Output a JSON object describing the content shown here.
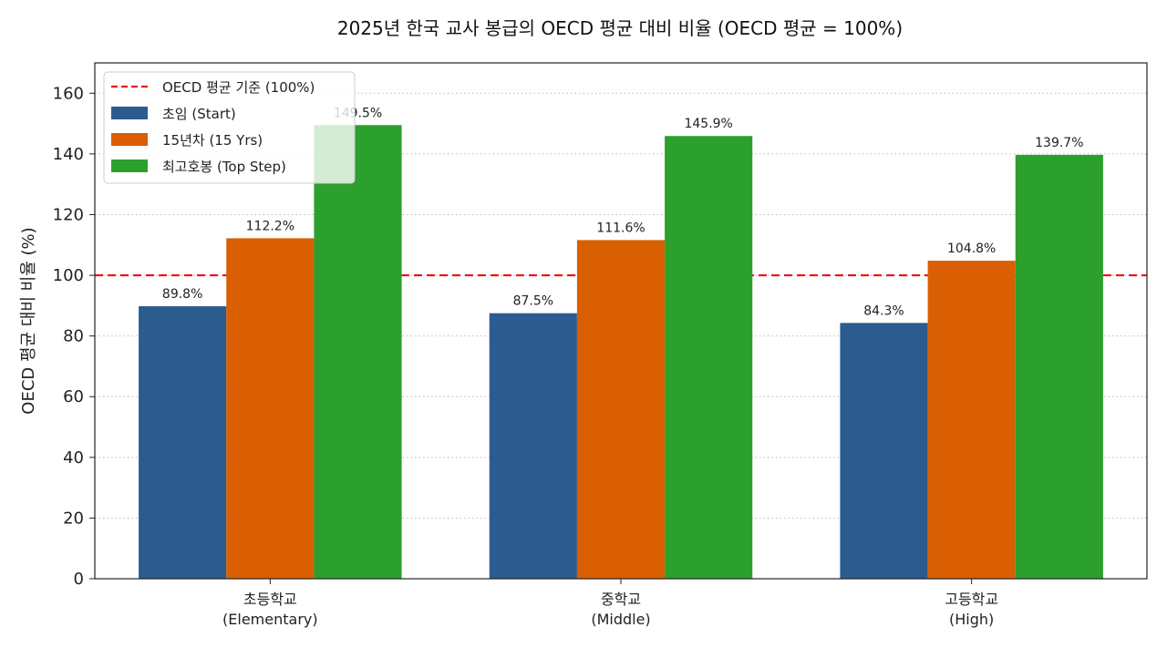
{
  "chart_data": {
    "type": "bar",
    "title": "2025년 한국 교사 봉급의 OECD 평균 대비 비율 (OECD 평균 = 100%)",
    "xlabel": "",
    "ylabel": "OECD 평균 대비 비율 (%)",
    "ylim": [
      0,
      170
    ],
    "yticks": [
      0,
      20,
      40,
      60,
      80,
      100,
      120,
      140,
      160
    ],
    "categories": [
      [
        "초등학교",
        "(Elementary)"
      ],
      [
        "중학교",
        "(Middle)"
      ],
      [
        "고등학교",
        "(High)"
      ]
    ],
    "series": [
      {
        "name": "초임 (Start)",
        "color": "#2c5b8f",
        "values": [
          89.8,
          87.5,
          84.3
        ],
        "labels": [
          "89.8%",
          "87.5%",
          "84.3%"
        ]
      },
      {
        "name": "15년차 (15 Yrs)",
        "color": "#d95f02",
        "values": [
          112.2,
          111.6,
          104.8
        ],
        "labels": [
          "112.2%",
          "111.6%",
          "104.8%"
        ]
      },
      {
        "name": "최고호봉 (Top Step)",
        "color": "#2ca02c",
        "values": [
          149.5,
          145.9,
          139.7
        ],
        "labels": [
          "149.5%",
          "145.9%",
          "139.7%"
        ]
      }
    ],
    "reference_line": {
      "name": "OECD 평균 기준 (100%)",
      "value": 100,
      "color": "#ee1111",
      "style": "dashed"
    },
    "grid": "y-dotted",
    "legend_position": "top-left"
  }
}
